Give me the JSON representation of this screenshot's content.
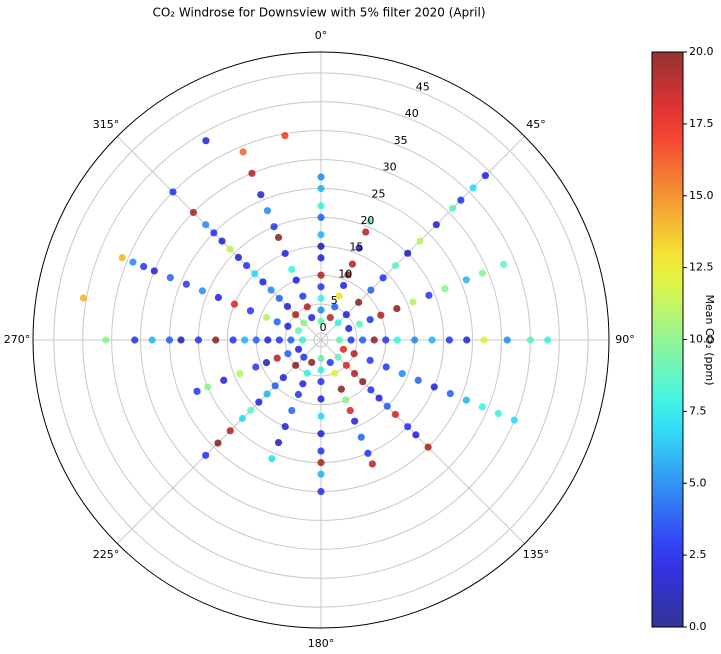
{
  "chart_data": {
    "type": "polar-scatter",
    "title": "CO₂ Windrose for Downsview with 5% filter 2020 (April)",
    "colormap": "jet",
    "grid": true,
    "x": [
      0,
      0,
      0,
      0,
      0,
      0,
      0,
      0,
      0,
      0,
      0,
      0,
      22.5,
      22.5,
      22.5,
      22.5,
      22.5,
      22.5,
      22.5,
      22.5,
      22.5,
      45,
      45,
      45,
      45,
      45,
      45,
      45,
      45,
      45,
      45,
      45,
      45,
      45,
      67.5,
      67.5,
      67.5,
      67.5,
      67.5,
      67.5,
      67.5,
      67.5,
      67.5,
      67.5,
      67.5,
      90,
      90,
      90,
      90,
      90,
      90,
      90,
      90,
      90,
      90,
      90,
      90,
      90,
      90,
      112.5,
      112.5,
      112.5,
      112.5,
      112.5,
      112.5,
      112.5,
      112.5,
      112.5,
      112.5,
      112.5,
      112.5,
      135,
      135,
      135,
      135,
      135,
      135,
      135,
      135,
      135,
      135,
      135,
      157.5,
      157.5,
      157.5,
      157.5,
      157.5,
      157.5,
      157.5,
      157.5,
      157.5,
      180,
      180,
      180,
      180,
      180,
      180,
      180,
      180,
      180,
      180,
      202.5,
      202.5,
      202.5,
      202.5,
      202.5,
      202.5,
      202.5,
      202.5,
      225,
      225,
      225,
      225,
      225,
      225,
      225,
      225,
      225,
      225,
      225,
      247.5,
      247.5,
      247.5,
      247.5,
      247.5,
      247.5,
      247.5,
      247.5,
      247.5,
      270,
      270,
      270,
      270,
      270,
      270,
      270,
      270,
      270,
      270,
      270,
      270,
      270,
      270,
      292.5,
      292.5,
      292.5,
      292.5,
      292.5,
      292.5,
      292.5,
      292.5,
      292.5,
      292.5,
      292.5,
      292.5,
      292.5,
      292.5,
      315,
      315,
      315,
      315,
      315,
      315,
      315,
      315,
      315,
      315,
      315,
      315,
      315,
      315,
      315,
      337.5,
      337.5,
      337.5,
      337.5,
      337.5,
      337.5,
      337.5,
      337.5,
      337.5,
      337.5,
      337.5,
      337.5,
      350,
      330,
      280
    ],
    "values": [
      2,
      4,
      6,
      8,
      10,
      13,
      15,
      17,
      20,
      22,
      25,
      27,
      3,
      5,
      7,
      9,
      11,
      13,
      16,
      19,
      21,
      3,
      5,
      8,
      11,
      14,
      17,
      20,
      23,
      27,
      31,
      33,
      36,
      39,
      4,
      6,
      8,
      10,
      13,
      16,
      19,
      22,
      26,
      29,
      33,
      2,
      4,
      6,
      8,
      10,
      12,
      15,
      18,
      21,
      24,
      27,
      31,
      35,
      38,
      3,
      5,
      8,
      11,
      14,
      17,
      20,
      23,
      26,
      29,
      32,
      35,
      3,
      5,
      7,
      9,
      11,
      13,
      15,
      17,
      20,
      22,
      25,
      3,
      5,
      8,
      10,
      12,
      14,
      17,
      20,
      22,
      2,
      4,
      6,
      9,
      12,
      15,
      18,
      20,
      22,
      25,
      3,
      5,
      7,
      9,
      12,
      15,
      18,
      21,
      3,
      5,
      8,
      10,
      12,
      14,
      16,
      18,
      21,
      24,
      27,
      3,
      5,
      7,
      9,
      11,
      14,
      17,
      20,
      22,
      2,
      4,
      6,
      8,
      10,
      12,
      14,
      17,
      20,
      23,
      25,
      28,
      31,
      36,
      3,
      5,
      7,
      9,
      12,
      15,
      18,
      21,
      24,
      27,
      30,
      32,
      34,
      36,
      3,
      5,
      7,
      9,
      11,
      13,
      15,
      17,
      19,
      21,
      23,
      25,
      27,
      30,
      35,
      3,
      5,
      7,
      10,
      12,
      15,
      18,
      20,
      23,
      26,
      30,
      34,
      34.7,
      38.6,
      40.5
    ],
    "co2": [
      9,
      5,
      8,
      3,
      19,
      2,
      1,
      6,
      4,
      8,
      6,
      5,
      19,
      4,
      13,
      2,
      20,
      19,
      1,
      19,
      9,
      8,
      2,
      20,
      4,
      3,
      9,
      1,
      11,
      2,
      9,
      3,
      7,
      2,
      2,
      9,
      3,
      19,
      20,
      11,
      3,
      10,
      6,
      10,
      9,
      9,
      3,
      4,
      20,
      3,
      8,
      5,
      6,
      3,
      2,
      12,
      5,
      9,
      8,
      18,
      19,
      3,
      3,
      5,
      4,
      2,
      4,
      6,
      8,
      8,
      7,
      9,
      18,
      19,
      20,
      3,
      2,
      4,
      18,
      3,
      2,
      19,
      3,
      12,
      20,
      10,
      18,
      2,
      4,
      3,
      19,
      9,
      8,
      3,
      2,
      7,
      2,
      3,
      19,
      6,
      3,
      20,
      8,
      2,
      3,
      4,
      2,
      1,
      7,
      3,
      20,
      2,
      4,
      6,
      2,
      9,
      7,
      19,
      20,
      3,
      2,
      4,
      19,
      1,
      3,
      11,
      2,
      10,
      3,
      8,
      4,
      3,
      2,
      4,
      6,
      3,
      20,
      3,
      1,
      4,
      6,
      3,
      10,
      9,
      2,
      4,
      11,
      3,
      18,
      2,
      5,
      3,
      4,
      2,
      3,
      5,
      14,
      10,
      19,
      2,
      4,
      5,
      2,
      7,
      3,
      2,
      11,
      2,
      3,
      5,
      19,
      3,
      2,
      19,
      3,
      2,
      8,
      2,
      20,
      3,
      5,
      2,
      19,
      16,
      17,
      2,
      14
    ],
    "ylim": [
      -1.2,
      48.6
    ],
    "yticks": [
      0,
      5,
      10,
      15,
      20,
      25,
      30,
      35,
      40,
      45
    ],
    "xticks": [
      {
        "value": 0,
        "label": "0°"
      },
      {
        "value": 45,
        "label": "45°"
      },
      {
        "value": 90,
        "label": "90°"
      },
      {
        "value": 135,
        "label": "135°"
      },
      {
        "value": 180,
        "label": "180°"
      },
      {
        "value": 225,
        "label": "225°"
      },
      {
        "value": 270,
        "label": "270°"
      },
      {
        "value": 315,
        "label": "315°"
      }
    ],
    "clim": [
      0,
      20
    ],
    "cticks": [
      {
        "value": 0,
        "label": "0.0"
      },
      {
        "value": 2.5,
        "label": "2.5"
      },
      {
        "value": 5,
        "label": "5.0"
      },
      {
        "value": 7.5,
        "label": "7.5"
      },
      {
        "value": 10,
        "label": "10.0"
      },
      {
        "value": 12.5,
        "label": "12.5"
      },
      {
        "value": 15,
        "label": "15.0"
      },
      {
        "value": 17.5,
        "label": "17.5"
      },
      {
        "value": 20,
        "label": "20.0"
      }
    ],
    "colorbar_label": "Mean CO₂ (ppm)"
  }
}
